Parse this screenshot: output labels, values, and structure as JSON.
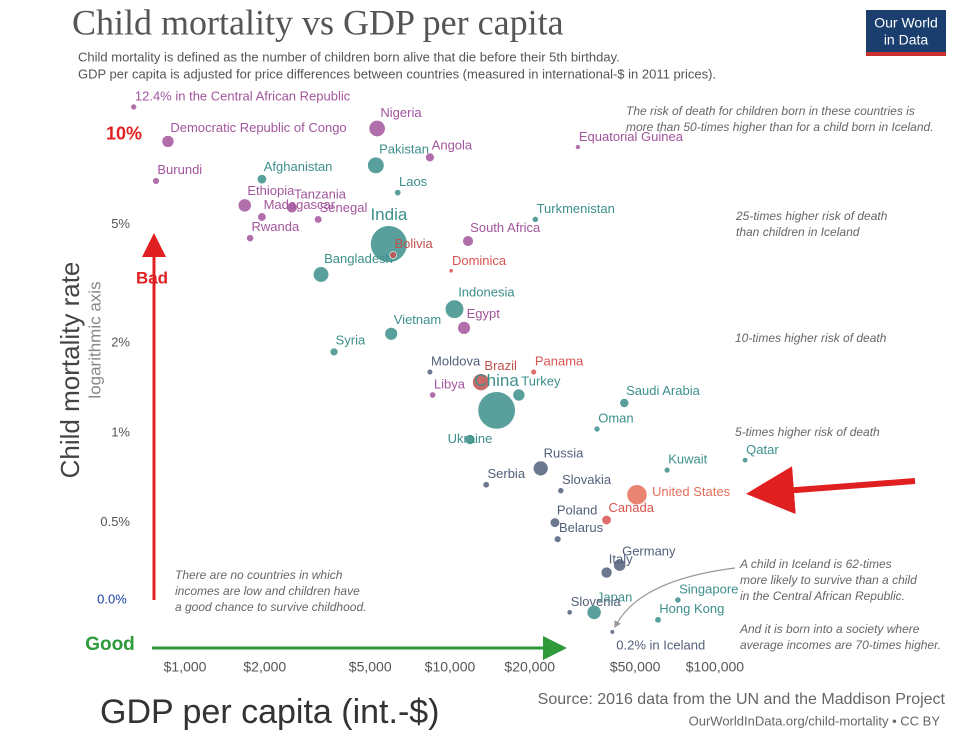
{
  "chart_data": {
    "type": "scatter",
    "title": "Child mortality vs GDP per capita",
    "subtitle": [
      "Child mortality is defined as the number of children born alive that die before their 5th birthday.",
      "GDP per capita is adjusted for price differences between countries (measured in international-$ in 2011 prices)."
    ],
    "logo": [
      "Our World",
      "in Data"
    ],
    "y_label": "Child mortality rate",
    "y_sublabel": "logarithmic axis",
    "x_label": "GDP per capita (int.-$)",
    "source": [
      "Source: 2016 data from the UN and the Maddison Project",
      "OurWorldInData.org/child-mortality  •  CC BY"
    ],
    "log_x": true,
    "log_y": true,
    "xlim": [
      676,
      148000
    ],
    "ylim": [
      0.173,
      13.6
    ],
    "xticks": [
      {
        "value": 1000,
        "label": "$1,000"
      },
      {
        "value": 2000,
        "label": "$2,000"
      },
      {
        "value": 5000,
        "label": "$5,000"
      },
      {
        "value": 10000,
        "label": "$10,000"
      },
      {
        "value": 20000,
        "label": "$20,000"
      },
      {
        "value": 50000,
        "label": "$50,000"
      },
      {
        "value": 100000,
        "label": "$100,000"
      }
    ],
    "yticks": [
      {
        "value": 10,
        "label": "10%"
      },
      {
        "value": 5,
        "label": "5%"
      },
      {
        "value": 2,
        "label": "2%"
      },
      {
        "value": 1,
        "label": "1%"
      },
      {
        "value": 0.5,
        "label": "0.5%"
      }
    ],
    "points": [
      {
        "label": "12.4% in the Central African Republic",
        "x": 640,
        "y": 12.4,
        "size": 4.6,
        "color": "#a2559c"
      },
      {
        "label": "Nigeria",
        "x": 5310,
        "y": 10.5,
        "size": 186,
        "color": "#a2559c"
      },
      {
        "label": "Democratic Republic of Congo",
        "x": 862,
        "y": 9.5,
        "size": 79,
        "color": "#a2559c"
      },
      {
        "label": "Burundi",
        "x": 777,
        "y": 7.0,
        "size": 10,
        "color": "#a2559c"
      },
      {
        "label": "Afghanistan",
        "x": 1950,
        "y": 7.1,
        "size": 35,
        "color": "#3c8f8b"
      },
      {
        "label": "Pakistan",
        "x": 5250,
        "y": 7.9,
        "size": 193,
        "color": "#3c8f8b"
      },
      {
        "label": "Angola",
        "x": 8400,
        "y": 8.4,
        "size": 29,
        "color": "#a2559c"
      },
      {
        "label": "Equatorial Guinea",
        "x": 30400,
        "y": 9.1,
        "size": 1.2,
        "color": "#a2559c"
      },
      {
        "label": "Laos",
        "x": 6350,
        "y": 6.4,
        "size": 6.8,
        "color": "#3c8f8b"
      },
      {
        "label": "Ethiopia",
        "x": 1680,
        "y": 5.8,
        "size": 102,
        "color": "#a2559c"
      },
      {
        "label": "Tanzania",
        "x": 2530,
        "y": 5.7,
        "size": 55,
        "color": "#a2559c"
      },
      {
        "label": "Madagascar",
        "x": 1950,
        "y": 5.3,
        "size": 25,
        "color": "#a2559c"
      },
      {
        "label": "Senegal",
        "x": 3180,
        "y": 5.2,
        "size": 15,
        "color": "#a2559c"
      },
      {
        "label": "India",
        "x": 5880,
        "y": 4.3,
        "size": 1324,
        "color": "#3c8f8b"
      },
      {
        "label": "Turkmenistan",
        "x": 21000,
        "y": 5.2,
        "size": 5.7,
        "color": "#3c8f8b"
      },
      {
        "label": "South Africa",
        "x": 11700,
        "y": 4.4,
        "size": 56,
        "color": "#a2559c"
      },
      {
        "label": "Rwanda",
        "x": 1760,
        "y": 4.5,
        "size": 12,
        "color": "#a2559c"
      },
      {
        "label": "Bangladesh",
        "x": 3260,
        "y": 3.4,
        "size": 163,
        "color": "#3c8f8b"
      },
      {
        "label": "Bolivia",
        "x": 6100,
        "y": 3.95,
        "size": 11,
        "color": "#c0504d"
      },
      {
        "label": "Dominica",
        "x": 10100,
        "y": 3.5,
        "size": 0.07,
        "color": "#d9534f"
      },
      {
        "label": "Indonesia",
        "x": 10400,
        "y": 2.6,
        "size": 261,
        "color": "#3c8f8b"
      },
      {
        "label": "Egypt",
        "x": 11300,
        "y": 2.25,
        "size": 96,
        "color": "#a2559c"
      },
      {
        "label": "Vietnam",
        "x": 6000,
        "y": 2.15,
        "size": 95,
        "color": "#3c8f8b"
      },
      {
        "label": "Syria",
        "x": 3650,
        "y": 1.87,
        "size": 18,
        "color": "#3c8f8b"
      },
      {
        "label": "Moldova",
        "x": 8400,
        "y": 1.6,
        "size": 3.6,
        "color": "#52607a"
      },
      {
        "label": "Brazil",
        "x": 13100,
        "y": 1.48,
        "size": 208,
        "color": "#c0504d"
      },
      {
        "label": "Panama",
        "x": 20700,
        "y": 1.6,
        "size": 4,
        "color": "#d9534f"
      },
      {
        "label": "Libya",
        "x": 8600,
        "y": 1.34,
        "size": 6.3,
        "color": "#a2559c"
      },
      {
        "label": "Turkey",
        "x": 18200,
        "y": 1.34,
        "size": 80,
        "color": "#3c8f8b"
      },
      {
        "label": "Saudi Arabia",
        "x": 45500,
        "y": 1.26,
        "size": 32,
        "color": "#3c8f8b"
      },
      {
        "label": "China",
        "x": 15000,
        "y": 1.19,
        "size": 1379,
        "color": "#3c8f8b"
      },
      {
        "label": "Oman",
        "x": 35900,
        "y": 1.03,
        "size": 4.4,
        "color": "#3c8f8b"
      },
      {
        "label": "Ukraine",
        "x": 11900,
        "y": 0.95,
        "size": 45,
        "color": "#3c8f8b"
      },
      {
        "label": "Russia",
        "x": 22000,
        "y": 0.76,
        "size": 144,
        "color": "#52607a"
      },
      {
        "label": "Kuwait",
        "x": 66000,
        "y": 0.75,
        "size": 4,
        "color": "#3c8f8b"
      },
      {
        "label": "Qatar",
        "x": 130000,
        "y": 0.81,
        "size": 2.6,
        "color": "#3c8f8b"
      },
      {
        "label": "United States",
        "x": 50800,
        "y": 0.62,
        "size": 323,
        "color": "#e56e5a"
      },
      {
        "label": "Serbia",
        "x": 13700,
        "y": 0.67,
        "size": 7,
        "color": "#52607a"
      },
      {
        "label": "Slovakia",
        "x": 26200,
        "y": 0.64,
        "size": 5.4,
        "color": "#52607a"
      },
      {
        "label": "Poland",
        "x": 24900,
        "y": 0.5,
        "size": 38,
        "color": "#52607a"
      },
      {
        "label": "Canada",
        "x": 39000,
        "y": 0.51,
        "size": 36,
        "color": "#d9534f"
      },
      {
        "label": "Belarus",
        "x": 25500,
        "y": 0.44,
        "size": 9.5,
        "color": "#52607a"
      },
      {
        "label": "Germany",
        "x": 43700,
        "y": 0.36,
        "size": 82,
        "color": "#52607a"
      },
      {
        "label": "Italy",
        "x": 39000,
        "y": 0.34,
        "size": 61,
        "color": "#52607a"
      },
      {
        "label": "Japan",
        "x": 35000,
        "y": 0.25,
        "size": 127,
        "color": "#3c8f8b"
      },
      {
        "label": "Singapore",
        "x": 72500,
        "y": 0.275,
        "size": 5.6,
        "color": "#3c8f8b"
      },
      {
        "label": "Slovenia",
        "x": 28300,
        "y": 0.25,
        "size": 2,
        "color": "#52607a"
      },
      {
        "label": "Hong Kong",
        "x": 61000,
        "y": 0.236,
        "size": 7.3,
        "color": "#3c8f8b"
      },
      {
        "label": "0.2% in Iceland",
        "x": 41000,
        "y": 0.215,
        "size": 0.33,
        "color": "#52607a"
      }
    ],
    "annotations": {
      "risk50": [
        "The risk of death for children born in these countries is",
        "more than 50-times higher than for a child born in Iceland."
      ],
      "risk25": [
        "25-times higher risk of death",
        "than children in Iceland"
      ],
      "risk10": "10-times higher risk of death",
      "risk5": "5-times higher risk of death",
      "iceland": [
        "A child in Iceland is 62-times",
        "more likely to survive than a child",
        "in the Central African Republic.",
        "",
        "And it is born into a society where",
        "average incomes are 70-times higher."
      ],
      "none": [
        "There are no countries in which",
        "incomes are low and children have",
        "a good chance to survive childhood."
      ],
      "zero": "0.0%",
      "bad": "Bad",
      "good": "Good"
    }
  }
}
